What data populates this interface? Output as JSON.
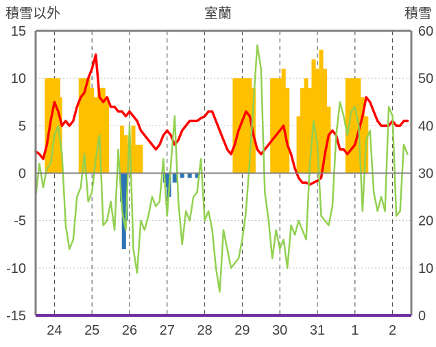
{
  "chart_data": {
    "type": "bar+line",
    "title": "室蘭",
    "left_axis_label": "積雪以外",
    "right_axis_label": "積雪",
    "left_ylim": [
      -15,
      15
    ],
    "left_ticks": [
      15,
      10,
      5,
      0,
      -5,
      -10,
      -15
    ],
    "right_ylim": [
      0,
      60
    ],
    "right_ticks": [
      60,
      50,
      40,
      30,
      20,
      10,
      0
    ],
    "x_ticks": [
      "24",
      "25",
      "26",
      "27",
      "28",
      "29",
      "30",
      "31",
      "1",
      "2"
    ],
    "x_range_days": [
      23.5,
      33.5
    ],
    "gridlines": "vertical dashed at each day; horizontal dotted",
    "colors": {
      "orange_bars": "#FFC000",
      "blue_bars": "#2E75B6",
      "red_line": "#FF0000",
      "green_line": "#92D050",
      "frame": "#808080",
      "bottom_axis": "#7030A0"
    },
    "series": [
      {
        "kind": "bar",
        "axis": "left",
        "color": "#FFC000",
        "x": [
          23.8,
          23.9,
          24.0,
          24.1,
          24.15,
          24.7,
          24.8,
          24.9,
          25.0,
          25.1,
          25.2,
          25.3,
          25.4,
          25.8,
          25.9,
          26.0,
          26.1,
          26.2,
          26.3,
          28.8,
          28.9,
          29.0,
          29.1,
          29.2,
          29.3,
          29.8,
          29.9,
          30.0,
          30.1,
          30.2,
          30.5,
          30.6,
          30.7,
          30.8,
          30.9,
          31.0,
          31.1,
          31.2,
          31.3,
          31.8,
          31.9,
          32.0,
          32.1,
          32.2,
          32.3
        ],
        "values": [
          10,
          10,
          10,
          10,
          8,
          10,
          10,
          10,
          9,
          8,
          9,
          9,
          8,
          5,
          4,
          3,
          5,
          3,
          3,
          10,
          10,
          10,
          10,
          10,
          9,
          10,
          10,
          10,
          11,
          9,
          6,
          9,
          10,
          9,
          12,
          11,
          13,
          11,
          7,
          10,
          10,
          10,
          10,
          8,
          6
        ]
      },
      {
        "kind": "bar",
        "axis": "left",
        "color": "#2E75B6",
        "x": [
          25.8,
          25.85,
          25.9,
          26.95,
          27.0,
          27.05,
          27.2,
          27.4,
          27.6,
          27.8
        ],
        "values": [
          -3,
          -8,
          -5,
          -1,
          -1.5,
          -2.5,
          -1,
          -0.5,
          -0.5,
          -0.5
        ]
      },
      {
        "kind": "line",
        "axis": "left",
        "color": "#FF0000",
        "x": [
          23.5,
          23.6,
          23.7,
          23.8,
          23.9,
          24.0,
          24.1,
          24.2,
          24.3,
          24.4,
          24.5,
          24.6,
          24.7,
          24.8,
          24.9,
          25.0,
          25.1,
          25.2,
          25.3,
          25.4,
          25.5,
          25.6,
          25.7,
          25.8,
          25.9,
          26.0,
          26.1,
          26.2,
          26.3,
          26.4,
          26.5,
          26.6,
          26.7,
          26.8,
          26.9,
          27.0,
          27.1,
          27.2,
          27.3,
          27.4,
          27.5,
          27.6,
          27.7,
          27.8,
          27.9,
          28.0,
          28.1,
          28.2,
          28.3,
          28.4,
          28.5,
          28.6,
          28.7,
          28.8,
          28.9,
          29.0,
          29.1,
          29.2,
          29.3,
          29.4,
          29.5,
          29.6,
          29.7,
          29.8,
          29.9,
          30.0,
          30.1,
          30.2,
          30.3,
          30.4,
          30.5,
          30.6,
          30.7,
          30.8,
          30.9,
          31.0,
          31.1,
          31.2,
          31.3,
          31.4,
          31.5,
          31.6,
          31.7,
          31.8,
          31.9,
          32.0,
          32.1,
          32.2,
          32.3,
          32.4,
          32.5,
          32.6,
          32.7,
          32.8,
          32.9,
          33.0,
          33.1,
          33.2,
          33.3,
          33.4
        ],
        "values": [
          2.3,
          2.0,
          1.5,
          3.0,
          5.5,
          7.5,
          6.5,
          5.0,
          5.5,
          5.0,
          5.5,
          7.0,
          8.0,
          8.5,
          10.0,
          11.0,
          12.5,
          8.0,
          7.5,
          8.0,
          7.0,
          7.0,
          6.5,
          6.5,
          6.0,
          6.5,
          6.0,
          5.5,
          4.5,
          4.0,
          3.5,
          3.0,
          2.5,
          3.0,
          4.0,
          4.5,
          4.0,
          3.0,
          3.5,
          4.5,
          5.0,
          5.5,
          5.5,
          5.5,
          5.8,
          6.0,
          6.5,
          6.5,
          5.5,
          4.5,
          3.5,
          2.5,
          2.0,
          3.0,
          4.5,
          5.5,
          6.5,
          6.0,
          4.0,
          2.5,
          2.0,
          2.5,
          3.0,
          3.5,
          4.0,
          4.5,
          5.0,
          3.0,
          2.0,
          0.5,
          -0.5,
          -1.0,
          -1.0,
          -1.2,
          -1.0,
          -0.8,
          -0.5,
          2.0,
          4.0,
          4.5,
          4.0,
          2.5,
          2.5,
          2.0,
          2.5,
          3.0,
          4.5,
          6.0,
          8.0,
          7.5,
          6.5,
          5.5,
          5.0,
          5.0,
          5.0,
          5.5,
          5.0,
          5.0,
          5.5,
          5.5
        ]
      },
      {
        "kind": "line",
        "axis": "left",
        "color": "#92D050",
        "x": [
          23.5,
          23.6,
          23.7,
          23.8,
          23.9,
          24.0,
          24.1,
          24.2,
          24.3,
          24.4,
          24.5,
          24.6,
          24.7,
          24.8,
          24.9,
          25.0,
          25.1,
          25.2,
          25.3,
          25.4,
          25.5,
          25.6,
          25.7,
          25.8,
          25.9,
          26.0,
          26.1,
          26.2,
          26.3,
          26.4,
          26.5,
          26.6,
          26.7,
          26.8,
          26.9,
          27.0,
          27.1,
          27.2,
          27.3,
          27.4,
          27.5,
          27.6,
          27.7,
          27.8,
          27.9,
          28.0,
          28.1,
          28.2,
          28.3,
          28.4,
          28.5,
          28.6,
          28.7,
          28.8,
          28.9,
          29.0,
          29.1,
          29.2,
          29.3,
          29.4,
          29.5,
          29.6,
          29.7,
          29.8,
          29.9,
          30.0,
          30.1,
          30.2,
          30.3,
          30.4,
          30.5,
          30.6,
          30.7,
          30.8,
          30.9,
          31.0,
          31.1,
          31.2,
          31.3,
          31.4,
          31.5,
          31.6,
          31.7,
          31.8,
          31.9,
          32.0,
          32.1,
          32.2,
          32.3,
          32.4,
          32.5,
          32.6,
          32.7,
          32.8,
          32.9,
          33.0,
          33.1,
          33.2,
          33.3,
          33.4
        ],
        "values": [
          -2.5,
          1.0,
          -1.5,
          0.5,
          1.0,
          4.0,
          5.0,
          2.0,
          -5.5,
          -8.0,
          -7.0,
          -2.5,
          -1.5,
          2.0,
          -3.0,
          -2.0,
          1.5,
          4.0,
          -5.5,
          -5.0,
          -3.0,
          -6.0,
          2.5,
          -4.0,
          -6.0,
          5.0,
          -8.0,
          -10.5,
          -5.0,
          -6.0,
          -4.5,
          -2.5,
          -3.5,
          -3.0,
          1.5,
          -4.5,
          1.0,
          6.0,
          -3.0,
          -7.5,
          -4.0,
          -5.0,
          -2.5,
          -2.0,
          1.5,
          -5.0,
          -4.0,
          -6.0,
          -10.0,
          -12.5,
          -6.0,
          -8.0,
          -10.0,
          -9.5,
          -9.0,
          -7.0,
          -4.0,
          1.5,
          7.5,
          13.5,
          11.0,
          -2.0,
          -5.0,
          -9.0,
          -6.0,
          -8.0,
          -7.0,
          -10.0,
          -5.5,
          -6.5,
          -5.0,
          -6.0,
          -7.0,
          1.0,
          5.5,
          3.0,
          -4.5,
          -5.0,
          -5.5,
          -3.5,
          4.0,
          7.5,
          6.0,
          4.0,
          6.5,
          7.0,
          5.0,
          -4.0,
          3.5,
          4.5,
          -2.0,
          -4.0,
          -2.5,
          -4.0,
          7.0,
          6.0,
          -4.5,
          -4.0,
          3.0,
          2.0
        ]
      }
    ]
  }
}
